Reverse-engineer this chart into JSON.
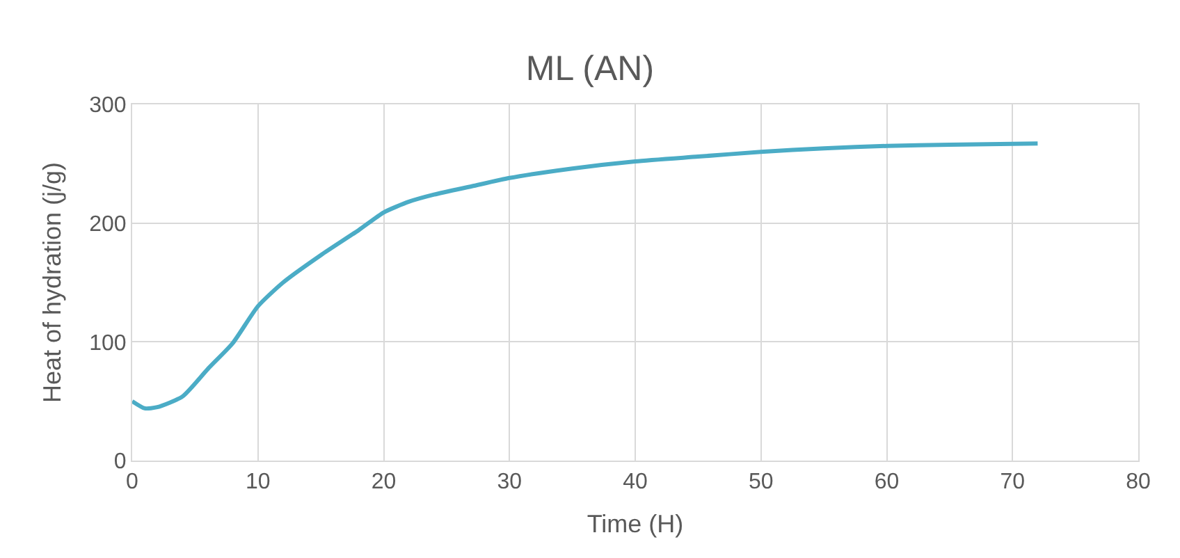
{
  "chart_data": {
    "type": "line",
    "title": "ML (AN)",
    "xlabel": "Time (H)",
    "ylabel": "Heat of hydration (j/g)",
    "x": [
      0,
      1,
      2,
      4,
      6,
      8,
      10,
      12,
      15,
      18,
      20,
      22,
      24,
      27,
      30,
      35,
      40,
      45,
      50,
      55,
      60,
      65,
      72
    ],
    "series": [
      {
        "color": "#4bacc6",
        "values": [
          50,
          44,
          45,
          54,
          77,
          99,
          130,
          150,
          173,
          194,
          209,
          218,
          224,
          231,
          238,
          246,
          252,
          256,
          260,
          263,
          265,
          266,
          267
        ]
      }
    ],
    "xlim": [
      0,
      80
    ],
    "xticks": [
      0,
      10,
      20,
      30,
      40,
      50,
      60,
      70,
      80
    ],
    "ylim": [
      0,
      300
    ],
    "yticks": [
      0,
      100,
      200,
      300
    ],
    "grid": true,
    "marker": "none",
    "line_style": "solid"
  }
}
